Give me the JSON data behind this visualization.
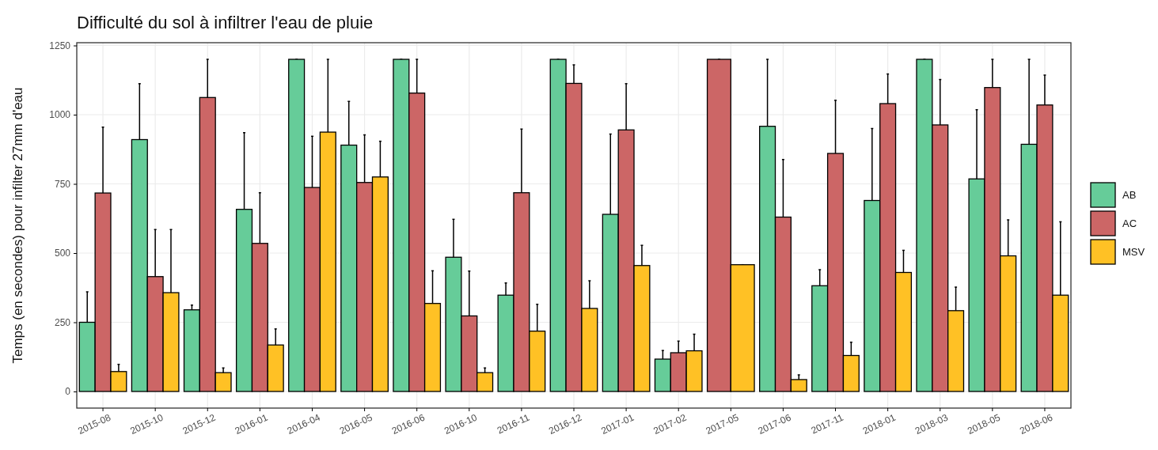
{
  "chart_data": {
    "type": "bar",
    "title": "Difficulté du sol à infiltrer l'eau de pluie",
    "ylabel": "Temps (en secondes) pour infilter 27mm d'eau",
    "categories": [
      "2015-08",
      "2015-10",
      "2015-12",
      "2016-01",
      "2016-04",
      "2016-05",
      "2016-06",
      "2016-10",
      "2016-11",
      "2016-12",
      "2017-01",
      "2017-02",
      "2017-05",
      "2017-06",
      "2017-11",
      "2018-01",
      "2018-03",
      "2018-05",
      "2018-06"
    ],
    "series": [
      {
        "name": "AB",
        "color": "#66cc99",
        "values": [
          250,
          910,
          295,
          658,
          1200,
          890,
          1200,
          485,
          348,
          1200,
          640,
          117,
          null,
          958,
          382,
          690,
          1200,
          768,
          893
        ],
        "errors": [
          110,
          202,
          17,
          277,
          0,
          158,
          0,
          137,
          44,
          0,
          290,
          31,
          null,
          242,
          58,
          260,
          0,
          250,
          307
        ]
      },
      {
        "name": "AC",
        "color": "#cc6666",
        "values": [
          717,
          415,
          1062,
          535,
          737,
          755,
          1078,
          273,
          718,
          1113,
          945,
          140,
          1200,
          630,
          860,
          1040,
          963,
          1098,
          1035
        ],
        "errors": [
          238,
          170,
          138,
          183,
          185,
          172,
          122,
          162,
          230,
          67,
          167,
          42,
          0,
          208,
          192,
          107,
          164,
          102,
          108
        ]
      },
      {
        "name": "MSV",
        "color": "#ffc125",
        "values": [
          72,
          357,
          68,
          168,
          937,
          775,
          318,
          68,
          218,
          300,
          455,
          147,
          458,
          43,
          130,
          430,
          292,
          490,
          348
        ],
        "errors": [
          26,
          228,
          17,
          58,
          263,
          129,
          118,
          17,
          97,
          100,
          73,
          60,
          0,
          17,
          48,
          80,
          85,
          130,
          265
        ]
      }
    ],
    "ylim": [
      -60,
      1260
    ],
    "yticks": [
      0,
      250,
      500,
      750,
      1000,
      1250
    ],
    "grid": true,
    "legend": "right"
  }
}
